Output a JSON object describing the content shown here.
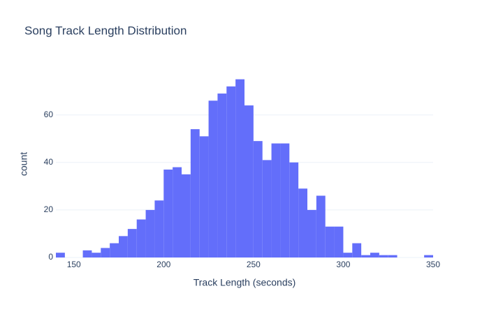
{
  "chart_data": {
    "type": "histogram",
    "title": "Song Track Length Distribution",
    "x_label": "Track Length (seconds)",
    "y_label": "count",
    "color": "#636efa",
    "bins": [
      140,
      145,
      150,
      155,
      160,
      165,
      170,
      175,
      180,
      185,
      190,
      195,
      200,
      205,
      210,
      215,
      220,
      225,
      230,
      235,
      240,
      245,
      250,
      255,
      260,
      265,
      270,
      275,
      280,
      285,
      290,
      295,
      300,
      305,
      310,
      315,
      320,
      325,
      330,
      335,
      340,
      345,
      350
    ],
    "counts": [
      2,
      0,
      0,
      3,
      2,
      4,
      6,
      9,
      12,
      16,
      20,
      24,
      37,
      38,
      35,
      54,
      51,
      66,
      69,
      72,
      75,
      64,
      49,
      41,
      48,
      48,
      40,
      29,
      20,
      26,
      13,
      13,
      2,
      6,
      1,
      2,
      1,
      1,
      0,
      0,
      0,
      1
    ],
    "xlim": [
      140,
      350
    ],
    "xticks": [
      150,
      200,
      250,
      300,
      350
    ],
    "ylim": [
      0,
      79
    ],
    "yticks": [
      0,
      20,
      40,
      60
    ],
    "grid": true
  }
}
